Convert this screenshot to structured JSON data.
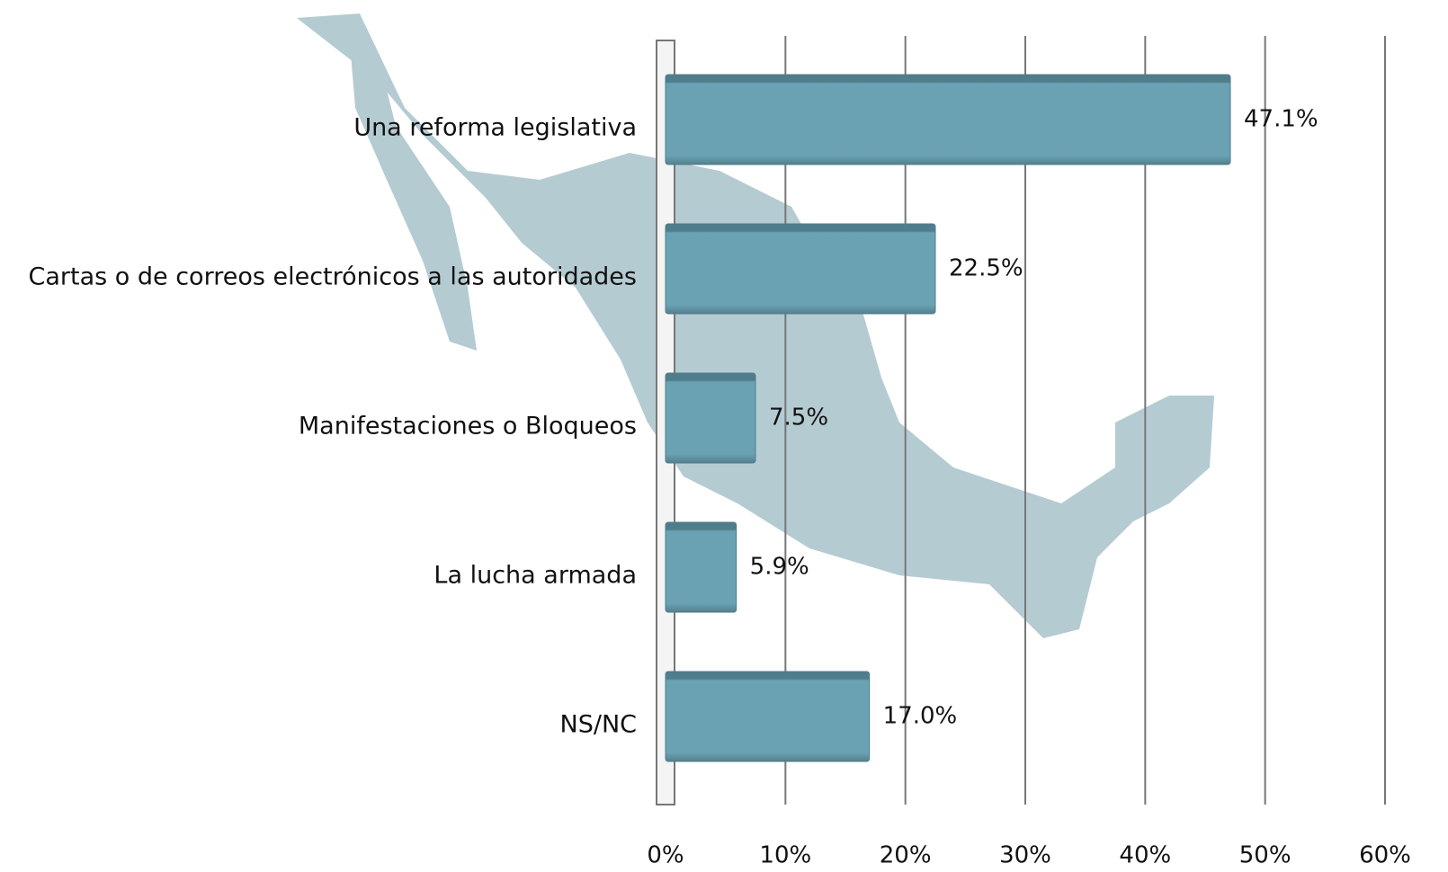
{
  "chart_data": {
    "type": "bar",
    "orientation": "horizontal",
    "categories": [
      "Una reforma legislativa",
      "Cartas o de correos electrónicos a las autoridades",
      "Manifestaciones o Bloqueos",
      "La lucha armada",
      "NS/NC"
    ],
    "values": [
      47.1,
      22.5,
      7.5,
      5.9,
      17.0
    ],
    "value_labels": [
      "47.1%",
      "22.5%",
      "7.5%",
      "5.9%",
      "17.0%"
    ],
    "color": "#6aa2b4",
    "xlim": [
      0,
      60
    ],
    "xticks": [
      {
        "value": 0,
        "label": "0%"
      },
      {
        "value": 10,
        "label": "10%"
      },
      {
        "value": 20,
        "label": "20%"
      },
      {
        "value": 30,
        "label": "30%"
      },
      {
        "value": 40,
        "label": "40%"
      },
      {
        "value": 50,
        "label": "50%"
      },
      {
        "value": 60,
        "label": "60%"
      }
    ],
    "grid": true
  }
}
